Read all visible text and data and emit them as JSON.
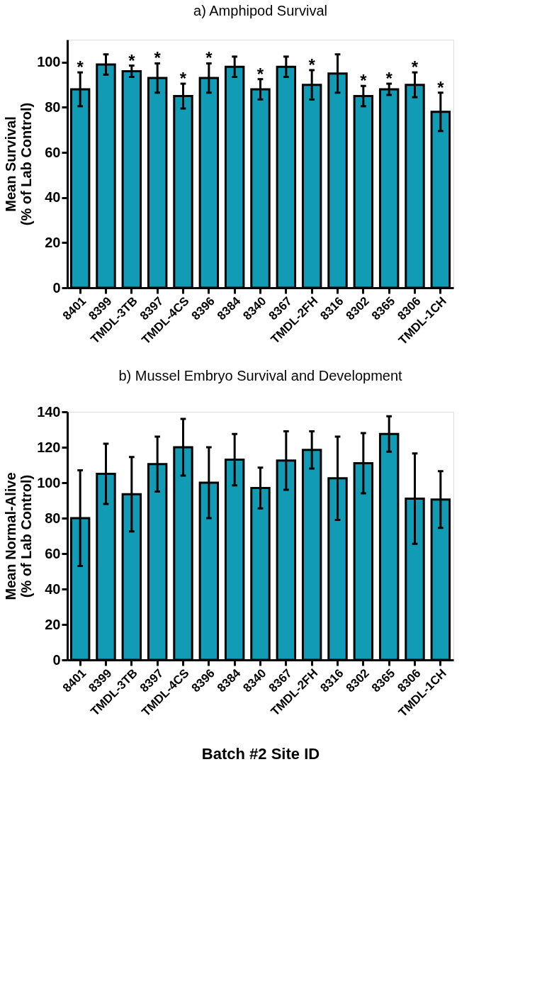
{
  "chart_data": [
    {
      "type": "bar",
      "title": "a) Amphipod Survival",
      "ylabel": "Mean Survival\n(% of  Lab Control)",
      "categories": [
        "8401",
        "8399",
        "TMDL-3TB",
        "8397",
        "TMDL-4CS",
        "8396",
        "8384",
        "8340",
        "8367",
        "TMDL-2FH",
        "8316",
        "8302",
        "8365",
        "8306",
        "TMDL-1CH"
      ],
      "series": [
        {
          "color": "#129bb5",
          "values": [
            88,
            99,
            96,
            93,
            85,
            93,
            98,
            88,
            98,
            90,
            95,
            85,
            88,
            90,
            78
          ],
          "errors": [
            7.5,
            4.5,
            2.5,
            6.5,
            5.5,
            6.5,
            4.5,
            4.5,
            4.5,
            6.5,
            8.5,
            4.5,
            2.5,
            5.5,
            8.5
          ]
        }
      ],
      "ylim": [
        0,
        110
      ],
      "yticks": [
        0,
        20,
        40,
        60,
        80,
        100
      ],
      "grid": false,
      "legend": false,
      "annotations": [
        {
          "text": "*",
          "x": "8401",
          "y": 95.5
        },
        {
          "text": "*",
          "x": "TMDL-3TB",
          "y": 98.5
        },
        {
          "text": "*",
          "x": "8397",
          "y": 99.5
        },
        {
          "text": "*",
          "x": "TMDL-4CS",
          "y": 90.5
        },
        {
          "text": "*",
          "x": "8396",
          "y": 99.5
        },
        {
          "text": "*",
          "x": "8340",
          "y": 92.5
        },
        {
          "text": "*",
          "x": "TMDL-2FH",
          "y": 96.5
        },
        {
          "text": "*",
          "x": "8302",
          "y": 89.5
        },
        {
          "text": "*",
          "x": "8365",
          "y": 90.5
        },
        {
          "text": "*",
          "x": "8306",
          "y": 95.5
        },
        {
          "text": "*",
          "x": "TMDL-1CH",
          "y": 86.5
        }
      ]
    },
    {
      "type": "bar",
      "title": "b) Mussel Embryo Survival and Development",
      "ylabel": "Mean Normal-Alive\n(% of  Lab Control)",
      "xlabel": "Batch #2 Site ID",
      "categories": [
        "8401",
        "8399",
        "TMDL-3TB",
        "8397",
        "TMDL-4CS",
        "8396",
        "8384",
        "8340",
        "8367",
        "TMDL-2FH",
        "8316",
        "8302",
        "8365",
        "8306",
        "TMDL-1CH"
      ],
      "series": [
        {
          "color": "#129bb5",
          "values": [
            80,
            105,
            93.5,
            110.5,
            120,
            100,
            113,
            97,
            112.5,
            118.5,
            102.5,
            111,
            127.5,
            91,
            90.5
          ],
          "errors": [
            27,
            17,
            21,
            15.5,
            16,
            20,
            14.5,
            11.5,
            16.5,
            10.5,
            23.5,
            17,
            10,
            25.5,
            16
          ]
        }
      ],
      "ylim": [
        0,
        140
      ],
      "yticks": [
        0,
        20,
        40,
        60,
        80,
        100,
        120,
        140
      ],
      "grid": false,
      "legend": false
    }
  ]
}
